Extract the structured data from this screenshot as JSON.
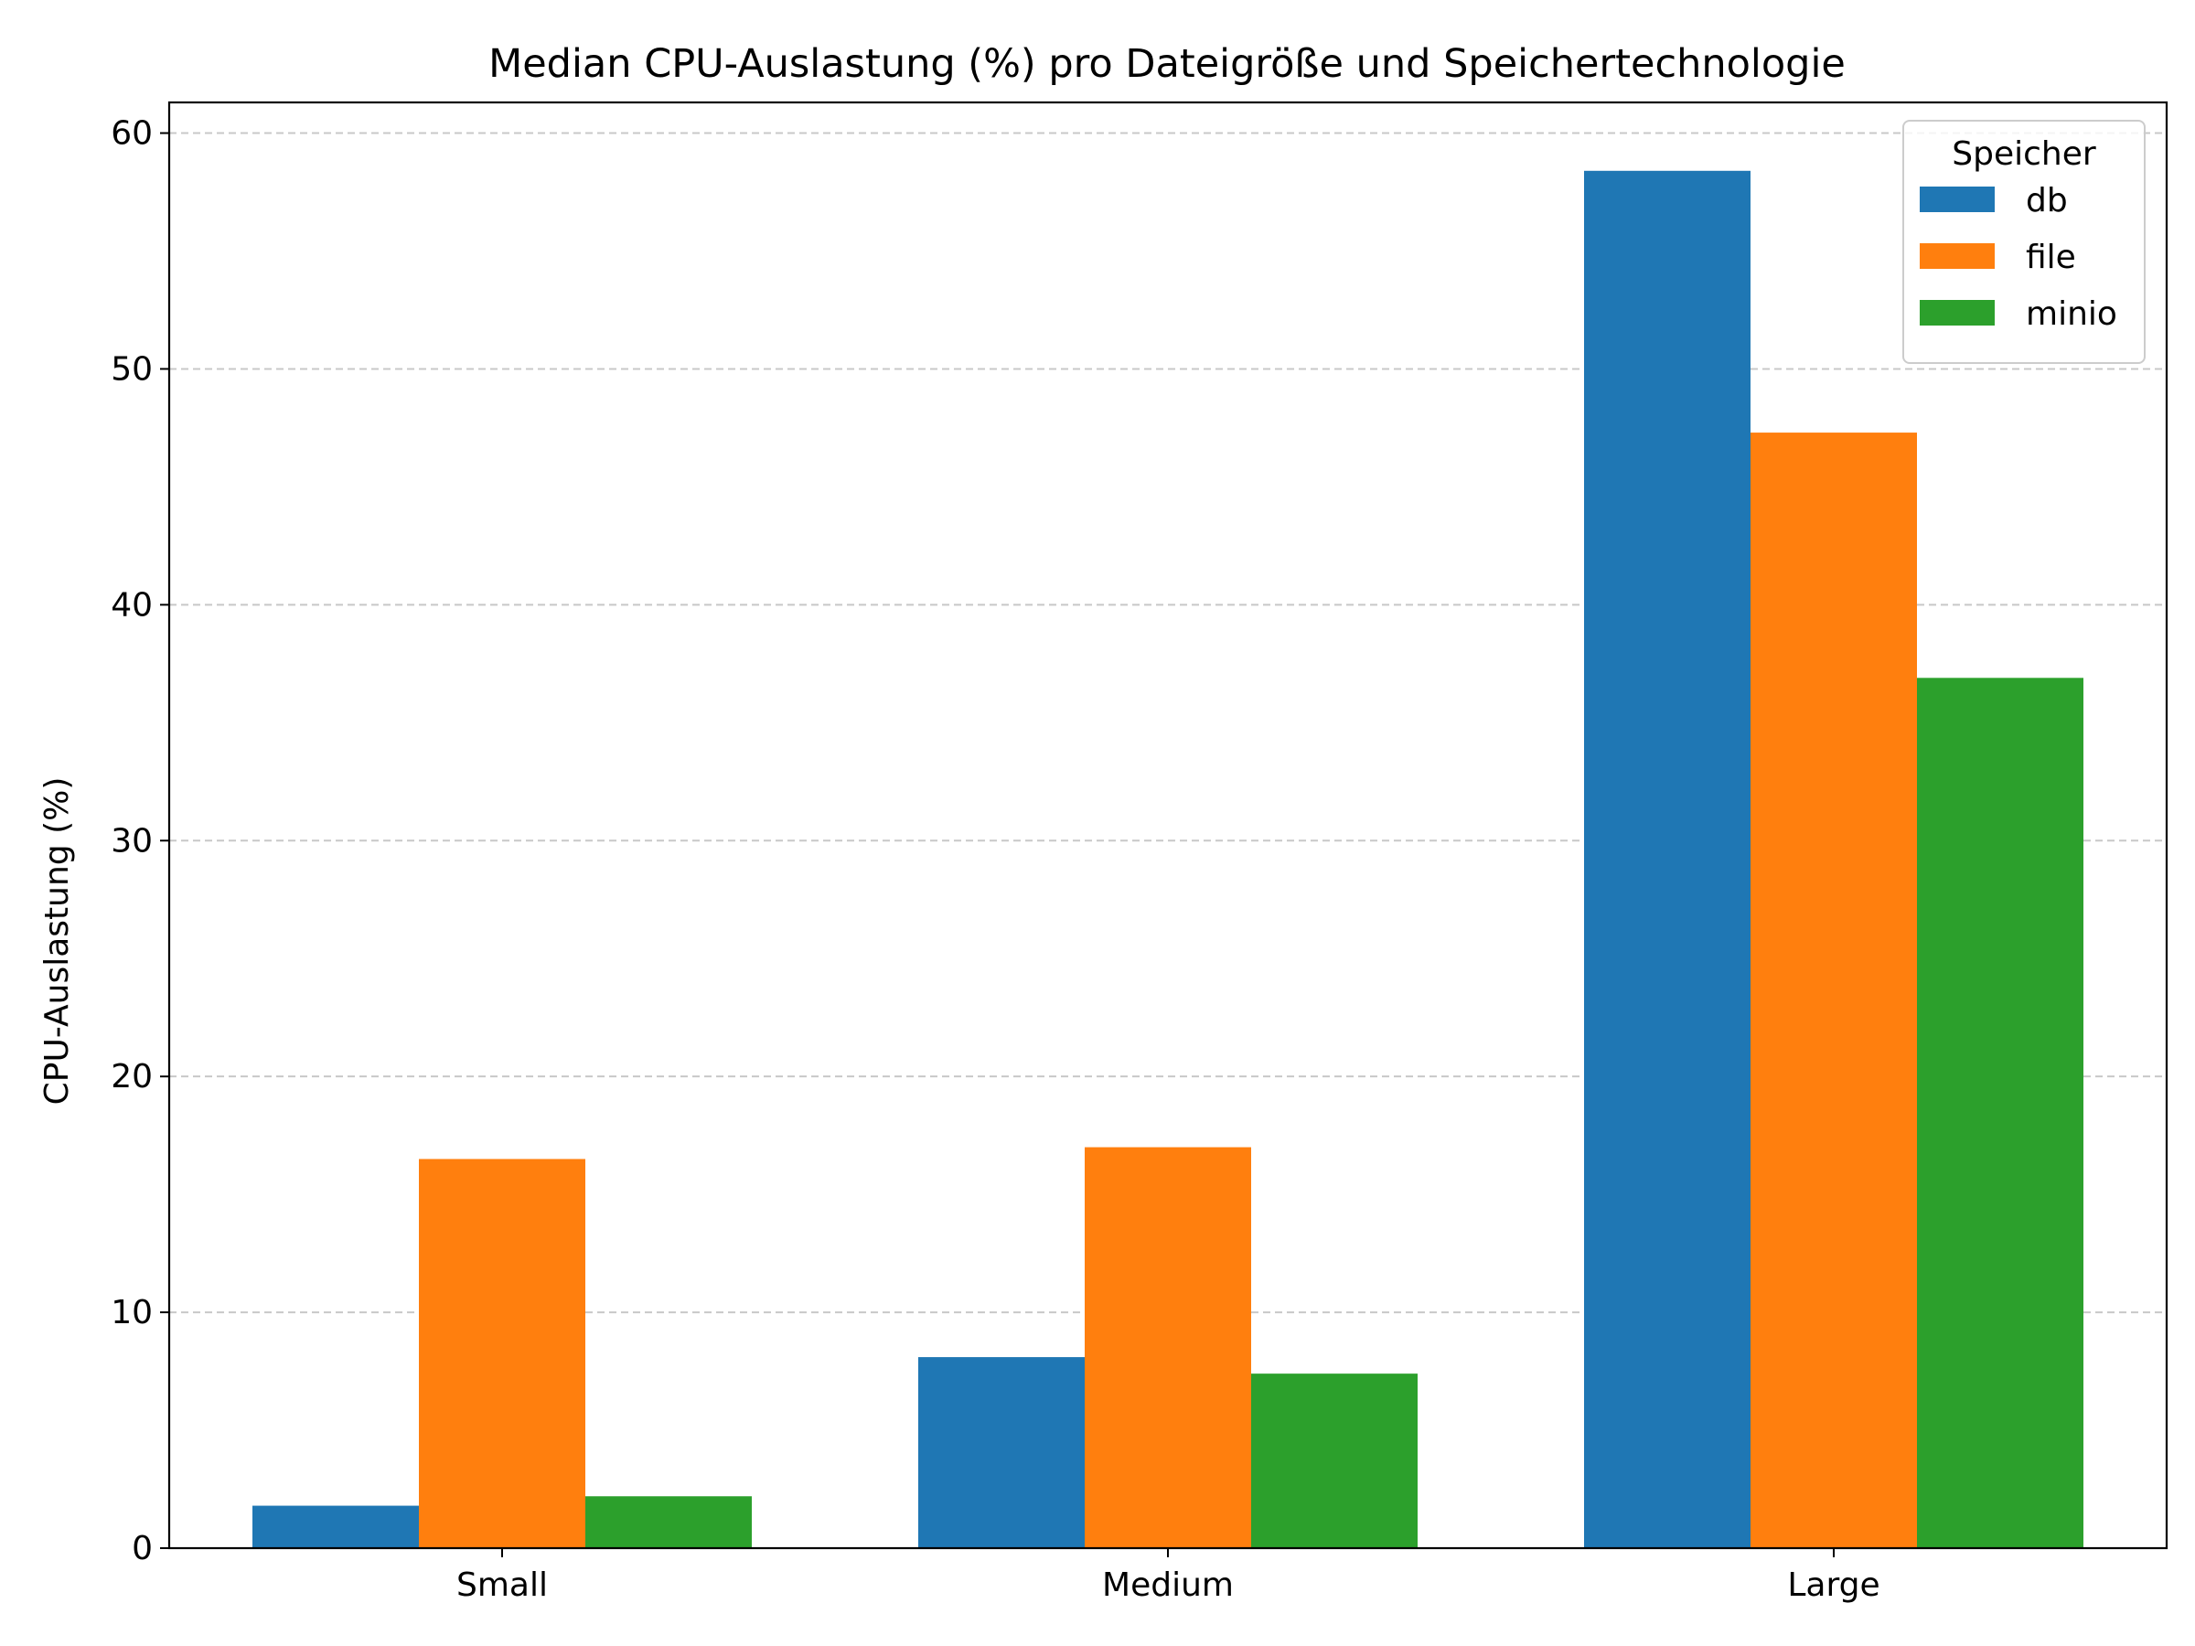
{
  "chart_data": {
    "type": "bar",
    "title": "Median CPU-Auslastung (%) pro Dateigröße und Speichertechnologie",
    "xlabel": "",
    "ylabel": "CPU-Auslastung (%)",
    "categories": [
      "Small",
      "Medium",
      "Large"
    ],
    "series": [
      {
        "name": "db",
        "color": "#1f77b4",
        "values": [
          1.8,
          8.1,
          58.4
        ]
      },
      {
        "name": "file",
        "color": "#ff7f0e",
        "values": [
          16.5,
          17.0,
          47.3
        ]
      },
      {
        "name": "minio",
        "color": "#2ca02c",
        "values": [
          2.2,
          7.4,
          36.9
        ]
      }
    ],
    "ylim": [
      0,
      61.3
    ],
    "yticks": [
      0,
      10,
      20,
      30,
      40,
      50,
      60
    ],
    "grid": "y-dashed",
    "legend": {
      "title": "Speicher",
      "placement": "top-right"
    }
  }
}
